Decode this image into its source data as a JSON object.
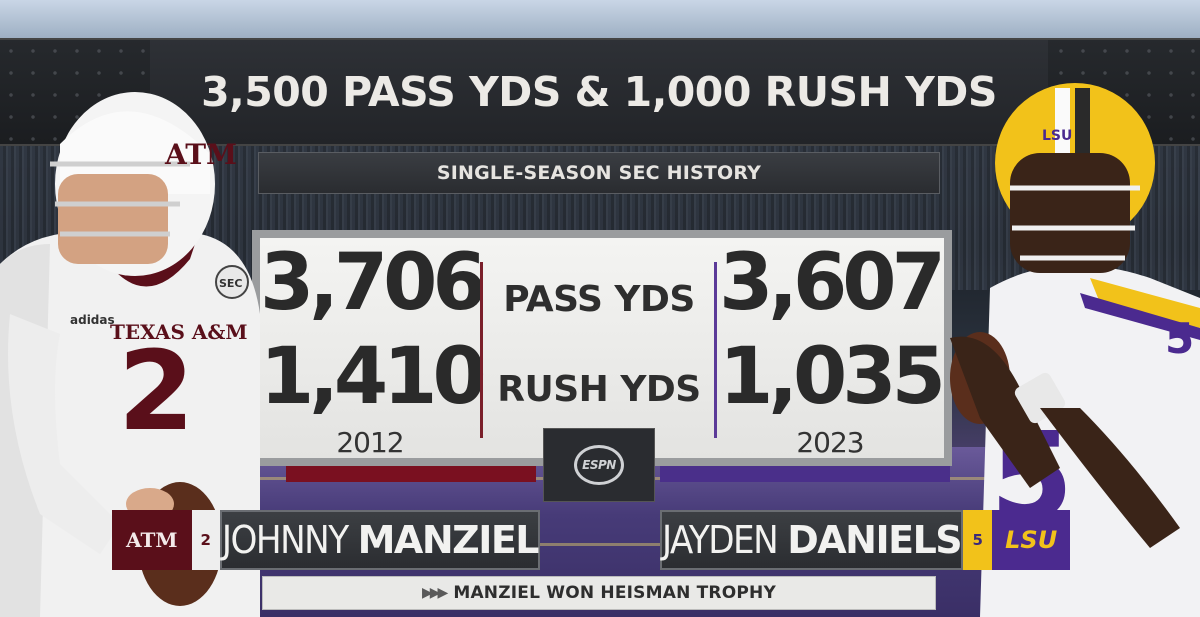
{
  "header": {
    "title": "3,500 PASS YDS & 1,000 RUSH YDS",
    "subtitle": "SINGLE-SEASON SEC HISTORY"
  },
  "stats": {
    "labels": {
      "pass": "PASS YDS",
      "rush": "RUSH YDS"
    },
    "left": {
      "pass": "3,706",
      "rush": "1,410",
      "year": "2012"
    },
    "right": {
      "pass": "3,607",
      "rush": "1,035",
      "year": "2023"
    }
  },
  "network": {
    "logo_text": "ESPN"
  },
  "players": {
    "left": {
      "school_logo": "ATM",
      "number": "2",
      "first_name": "JOHNNY",
      "last_name": "MANZIEL",
      "helmet_logo": "ATM",
      "jersey_text": "TEXAS A&M",
      "jersey_number": "2",
      "brand": "adidas",
      "patch": "SEC"
    },
    "right": {
      "school_logo": "LSU",
      "number": "5",
      "first_name": "JAYDEN",
      "last_name": "DANIELS",
      "helmet_logo": "LSU",
      "jersey_number": "5"
    }
  },
  "footer": {
    "note": "MANZIEL WON HEISMAN TROPHY",
    "arrows": "▶▶▶"
  },
  "colors": {
    "texas_am_maroon": "#5a0f1a",
    "lsu_purple": "#4b2a8f",
    "lsu_gold": "#f2c21a"
  }
}
